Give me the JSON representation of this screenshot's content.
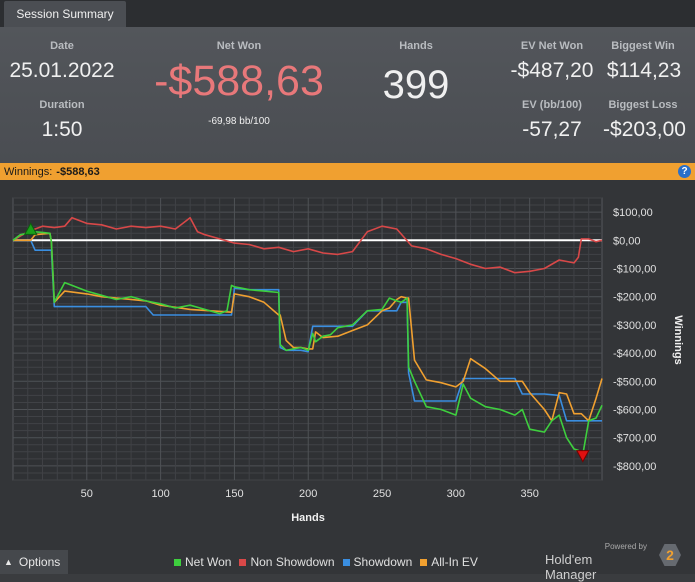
{
  "tab": {
    "label": "Session Summary"
  },
  "summary": {
    "date_label": "Date",
    "date": "25.01.2022",
    "duration_label": "Duration",
    "duration": "1:50",
    "net_won_label": "Net Won",
    "net_won": "-$588,63",
    "bb_per_100": "-69,98 bb/100",
    "hands_label": "Hands",
    "hands": "399",
    "ev_net_won_label": "EV Net Won",
    "ev_net_won": "-$487,20",
    "biggest_win_label": "Biggest Win",
    "biggest_win": "$114,23",
    "ev_bb_label": "EV (bb/100)",
    "ev_bb": "-57,27",
    "biggest_loss_label": "Biggest Loss",
    "biggest_loss": "-$203,00"
  },
  "banner": {
    "label": "Winnings:",
    "value": "-$588,63",
    "help_icon": "question-icon"
  },
  "colors": {
    "net_won_value": "#e8787a",
    "banner": "#f0a030",
    "net_won_line": "#3ecf3e",
    "non_showdown_line": "#d84848",
    "showdown_line": "#3a8ee0",
    "all_in_ev_line": "#f0a030",
    "best_marker": "#1aa01a",
    "worst_marker": "#e01010"
  },
  "chart_data": {
    "type": "line",
    "xlabel": "Hands",
    "ylabel": "Winnings",
    "xlim": [
      0,
      399
    ],
    "ylim": [
      -850,
      150
    ],
    "x_ticks": [
      50,
      100,
      150,
      200,
      250,
      300,
      350
    ],
    "x_tick_labels": [
      "50",
      "100",
      "150",
      "200",
      "250",
      "300",
      "350"
    ],
    "y_ticks": [
      100,
      0,
      -100,
      -200,
      -300,
      -400,
      -500,
      -600,
      -700,
      -800
    ],
    "y_tick_labels": [
      "$100,00",
      "$0,00",
      "-$100,00",
      "-$200,00",
      "-$300,00",
      "-$400,00",
      "-$500,00",
      "-$600,00",
      "-$700,00",
      "-$800,00"
    ],
    "grid": true,
    "legend_position": "bottom",
    "series": [
      {
        "name": "Net Won",
        "x": [
          0,
          5,
          10,
          12,
          15,
          20,
          25,
          26,
          28,
          32,
          35,
          40,
          50,
          60,
          70,
          80,
          90,
          100,
          110,
          120,
          130,
          140,
          145,
          148,
          150,
          155,
          160,
          170,
          180,
          181,
          185,
          190,
          195,
          200,
          203,
          205,
          210,
          215,
          220,
          230,
          240,
          250,
          255,
          260,
          263,
          267,
          268,
          272,
          280,
          290,
          300,
          305,
          310,
          320,
          330,
          340,
          345,
          350,
          360,
          365,
          370,
          375,
          380,
          383,
          386,
          390,
          395,
          399
        ],
        "y": [
          0,
          20,
          25,
          35,
          30,
          28,
          25,
          -5,
          -220,
          -180,
          -150,
          -160,
          -180,
          -195,
          -210,
          -200,
          -215,
          -225,
          -240,
          -230,
          -245,
          -260,
          -250,
          -160,
          -165,
          -170,
          -175,
          -180,
          -185,
          -370,
          -390,
          -385,
          -380,
          -390,
          -330,
          -360,
          -340,
          -335,
          -310,
          -300,
          -250,
          -245,
          -205,
          -215,
          -220,
          -205,
          -450,
          -500,
          -590,
          -600,
          -620,
          -510,
          -560,
          -590,
          -600,
          -620,
          -600,
          -670,
          -680,
          -640,
          -620,
          -700,
          -740,
          -745,
          -760,
          -640,
          -630,
          -585
        ]
      },
      {
        "name": "Non Showdown",
        "x": [
          0,
          10,
          20,
          28,
          35,
          40,
          50,
          60,
          70,
          80,
          90,
          100,
          110,
          115,
          120,
          125,
          130,
          140,
          150,
          160,
          170,
          180,
          190,
          200,
          210,
          220,
          230,
          240,
          250,
          260,
          270,
          280,
          290,
          300,
          310,
          320,
          330,
          340,
          350,
          360,
          370,
          380,
          383,
          385,
          390,
          395,
          399
        ],
        "y": [
          0,
          30,
          50,
          45,
          50,
          80,
          60,
          55,
          40,
          50,
          45,
          50,
          40,
          60,
          80,
          30,
          20,
          5,
          -10,
          -15,
          -30,
          -25,
          -40,
          -30,
          -45,
          -50,
          -40,
          30,
          50,
          40,
          -20,
          -30,
          -50,
          -65,
          -85,
          -100,
          -95,
          -115,
          -110,
          -100,
          -70,
          -80,
          -60,
          5,
          5,
          -5,
          0
        ]
      },
      {
        "name": "Showdown",
        "x": [
          0,
          12,
          15,
          25,
          26,
          28,
          35,
          50,
          60,
          90,
          95,
          100,
          120,
          148,
          150,
          160,
          170,
          180,
          181,
          185,
          190,
          195,
          200,
          203,
          205,
          220,
          230,
          240,
          250,
          260,
          263,
          267,
          268,
          272,
          280,
          300,
          305,
          310,
          320,
          340,
          345,
          350,
          360,
          370,
          375,
          380,
          385,
          390,
          395,
          399
        ],
        "y": [
          0,
          0,
          -35,
          -35,
          -35,
          -235,
          -235,
          -235,
          -235,
          -235,
          -265,
          -265,
          -265,
          -265,
          -170,
          -175,
          -175,
          -175,
          -380,
          -390,
          -390,
          -390,
          -395,
          -305,
          -305,
          -305,
          -305,
          -250,
          -250,
          -250,
          -220,
          -220,
          -470,
          -570,
          -570,
          -570,
          -490,
          -490,
          -490,
          -490,
          -545,
          -545,
          -545,
          -550,
          -640,
          -640,
          -640,
          -640,
          -640,
          -640
        ]
      },
      {
        "name": "All-In EV",
        "x": [
          0,
          12,
          15,
          25,
          26,
          28,
          35,
          50,
          60,
          90,
          100,
          120,
          148,
          150,
          160,
          170,
          180,
          181,
          185,
          190,
          195,
          200,
          203,
          205,
          210,
          220,
          230,
          240,
          250,
          255,
          260,
          263,
          267,
          268,
          272,
          280,
          290,
          300,
          305,
          310,
          320,
          330,
          340,
          345,
          350,
          360,
          365,
          370,
          375,
          380,
          385,
          390,
          395,
          399
        ],
        "y": [
          0,
          0,
          20,
          25,
          -5,
          -220,
          -180,
          -190,
          -200,
          -215,
          -230,
          -245,
          -255,
          -190,
          -200,
          -220,
          -265,
          -265,
          -355,
          -380,
          -380,
          -385,
          -385,
          -325,
          -345,
          -340,
          -320,
          -300,
          -250,
          -240,
          -210,
          -200,
          -205,
          -205,
          -425,
          -495,
          -505,
          -520,
          -500,
          -420,
          -455,
          -500,
          -500,
          -500,
          -540,
          -600,
          -640,
          -540,
          -545,
          -615,
          -615,
          -640,
          -560,
          -490
        ]
      }
    ],
    "markers": [
      {
        "name": "Biggest Win",
        "x": 12,
        "y": 35,
        "shape": "triangle-up"
      },
      {
        "name": "Biggest Loss",
        "x": 386,
        "y": -760,
        "shape": "triangle-down"
      }
    ]
  },
  "bottom": {
    "options_label": "Options",
    "legend": [
      {
        "label": "Net Won",
        "color": "#3ecf3e"
      },
      {
        "label": "Non Showdown",
        "color": "#d84848"
      },
      {
        "label": "Showdown",
        "color": "#3a8ee0"
      },
      {
        "label": "All-In EV",
        "color": "#f0a030"
      }
    ],
    "powered_by": "Powered by",
    "brand_name": "Hold'em Manager",
    "brand_number": "2"
  }
}
